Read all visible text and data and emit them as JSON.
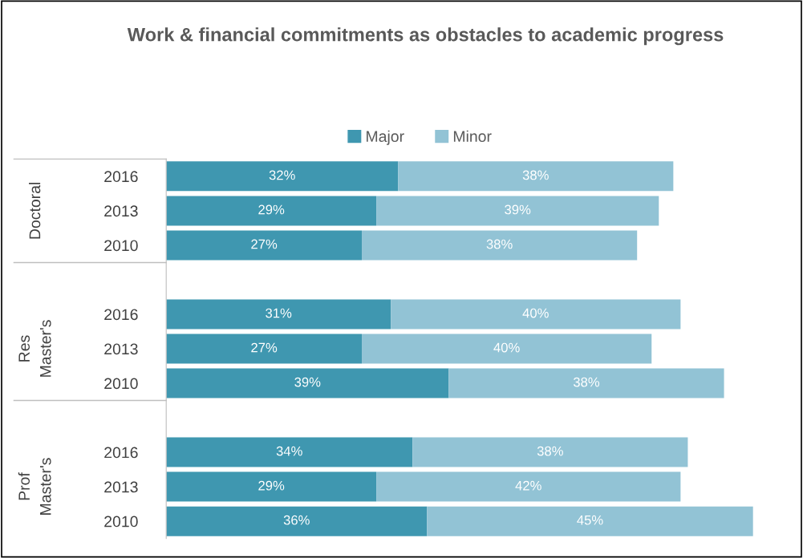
{
  "chart_data": {
    "type": "bar",
    "orientation": "horizontal",
    "stacked": true,
    "title": "Work & financial commitments as obstacles to academic progress",
    "categories": [
      "2016",
      "2013",
      "2010",
      null,
      "2016",
      "2013",
      "2010",
      null,
      "2016",
      "2013",
      "2010"
    ],
    "series": [
      {
        "name": "Major",
        "color": "#3f97b0",
        "values": [
          32,
          29,
          27,
          null,
          31,
          27,
          39,
          null,
          34,
          29,
          36
        ],
        "value_labels": [
          "32%",
          "29%",
          "27%",
          null,
          "31%",
          "27%",
          "39%",
          null,
          "34%",
          "29%",
          "36%"
        ]
      },
      {
        "name": "Minor",
        "color": "#92c3d5",
        "values": [
          38,
          39,
          38,
          null,
          40,
          40,
          38,
          null,
          38,
          42,
          45
        ],
        "value_labels": [
          "38%",
          "39%",
          "38%",
          null,
          "40%",
          "40%",
          "38%",
          null,
          "38%",
          "42%",
          "45%"
        ]
      }
    ],
    "annotations": [
      "Doctoral",
      "Res\nMaster's",
      "Prof\nMaster's"
    ],
    "legend": "top",
    "grid": false
  }
}
